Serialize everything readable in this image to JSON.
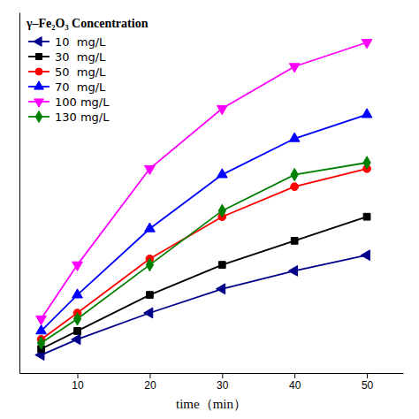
{
  "chart_data": {
    "type": "line",
    "title": "γ–Fe₂O₃ Concentration",
    "x_label": "time（min）",
    "x": [
      5,
      10,
      20,
      30,
      40,
      50
    ],
    "series": [
      {
        "name": "10  mg/L",
        "color": "#00008B",
        "marker": "triangle-left",
        "values": [
          1.5,
          2.8,
          5.0,
          7.0,
          8.5,
          9.8
        ]
      },
      {
        "name": "30  mg/L",
        "color": "#000000",
        "marker": "square",
        "values": [
          2.0,
          3.5,
          6.5,
          9.0,
          11.0,
          13.0
        ]
      },
      {
        "name": "50  mg/L",
        "color": "#FF0000",
        "marker": "circle",
        "values": [
          2.8,
          5.0,
          9.5,
          13.0,
          15.5,
          17.0
        ]
      },
      {
        "name": "70  mg/L",
        "color": "#0000FF",
        "marker": "triangle-up",
        "values": [
          3.5,
          6.5,
          12.0,
          16.5,
          19.5,
          21.5
        ]
      },
      {
        "name": "100 mg/L",
        "color": "#FF00FF",
        "marker": "triangle-down",
        "values": [
          4.5,
          9.0,
          17.0,
          22.0,
          25.5,
          27.5
        ]
      },
      {
        "name": "130 mg/L",
        "color": "#008000",
        "marker": "diamond",
        "values": [
          2.5,
          4.5,
          9.0,
          13.5,
          16.5,
          17.5
        ]
      }
    ],
    "xlim": [
      2,
      55
    ],
    "ylim": [
      0,
      30
    ],
    "xticks": [
      10,
      20,
      30,
      40,
      50
    ],
    "legend": "upper left",
    "tick_labels": "x",
    "grid": false
  }
}
